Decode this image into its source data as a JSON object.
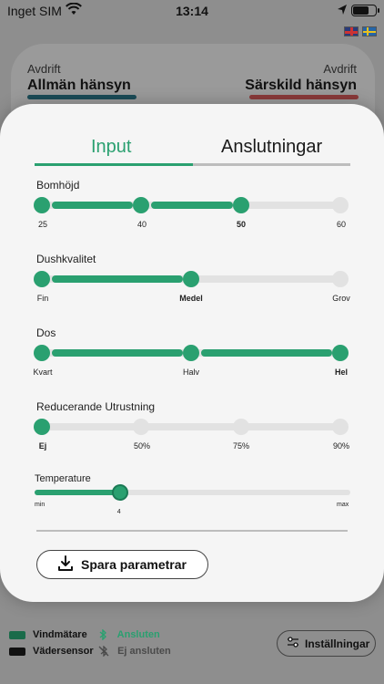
{
  "status_bar": {
    "carrier": "Inget SIM",
    "time": "13:14",
    "battery_level": 0.72
  },
  "languages": [
    {
      "icon": "uk-flag-icon",
      "code": "en"
    },
    {
      "icon": "sweden-flag-icon",
      "code": "sv"
    }
  ],
  "drift_left": {
    "small": "Avdrift",
    "big": "Allmän hänsyn",
    "color": "#1b4b57"
  },
  "drift_right": {
    "small": "Avdrift",
    "big": "Särskild hänsyn",
    "color": "#8a3a3a"
  },
  "tabs": [
    {
      "label": "Input",
      "active": true
    },
    {
      "label": "Anslutningar",
      "active": false
    }
  ],
  "sliders": [
    {
      "label": "Bomhöjd",
      "ticks": [
        "25",
        "40",
        "50",
        "60"
      ],
      "selected": "50"
    },
    {
      "label": "Dushkvalitet",
      "ticks": [
        "Fin",
        "Medel",
        "Grov"
      ],
      "selected": "Medel"
    },
    {
      "label": "Dos",
      "ticks": [
        "Kvart",
        "Halv",
        "Hel"
      ],
      "selected": "Hel"
    },
    {
      "label": "Reducerande Utrustning",
      "ticks": [
        "Ej",
        "50%",
        "75%",
        "90%"
      ],
      "selected": "Ej"
    }
  ],
  "temperature": {
    "label": "Temperature",
    "min": "min",
    "max": "max",
    "value": "4",
    "fraction": 0.27
  },
  "save_button": {
    "label": "Spara parametrar"
  },
  "devices": [
    {
      "name": "Vindmätare",
      "status": "Ansluten",
      "color": "#1a6b4a"
    },
    {
      "name": "Vädersensor",
      "status": "Ej ansluten",
      "color": "#111111"
    }
  ],
  "settings_button": {
    "label": "Inställningar"
  },
  "colors": {
    "accent": "#2aa070",
    "track": "#e2e2e2"
  }
}
